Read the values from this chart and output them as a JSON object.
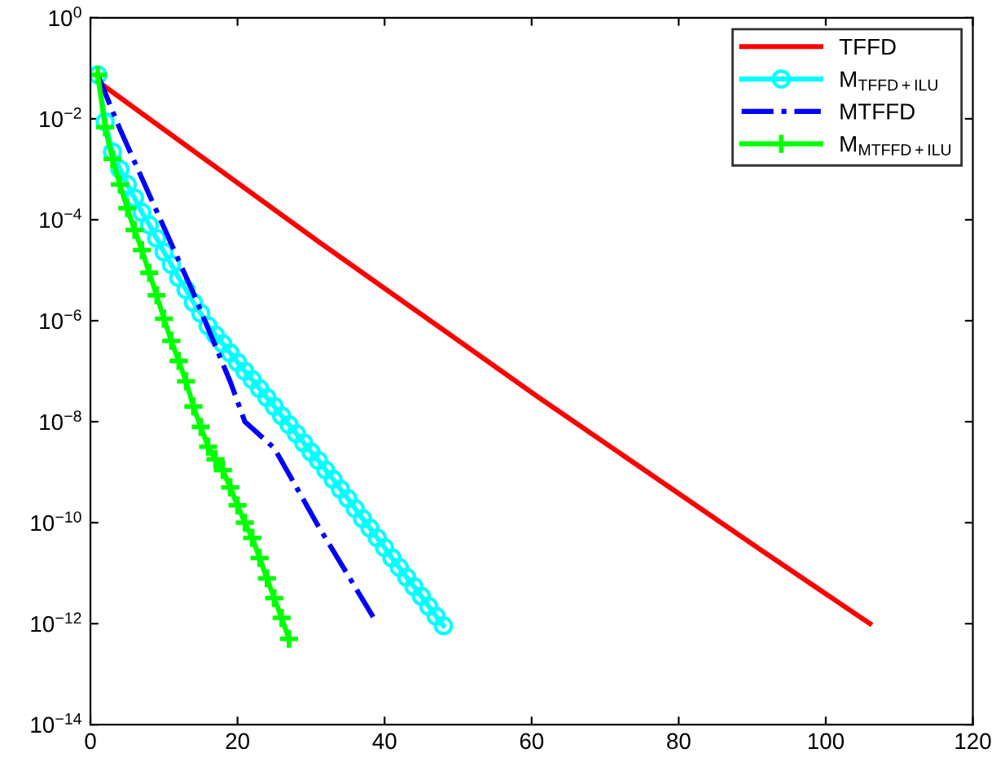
{
  "chart_data": {
    "type": "line",
    "log": "y",
    "grid": false,
    "legend": "top right",
    "xlim": [
      0,
      120
    ],
    "xticks": [
      0,
      20,
      40,
      60,
      80,
      100,
      120
    ],
    "ylim": [
      1e-14,
      1
    ],
    "yticks": [
      {
        "value": 1,
        "label": "10$^{0}$"
      },
      {
        "value": 0.01,
        "label": "10$^{−2}$"
      },
      {
        "value": 0.0001,
        "label": "10$^{−4}$"
      },
      {
        "value": 1e-06,
        "label": "10$^{−6}$"
      },
      {
        "value": 1e-08,
        "label": "10$^{−8}$"
      },
      {
        "value": 1e-10,
        "label": "10$^{−10}$"
      },
      {
        "value": 1e-12,
        "label": "10$^{−12}$"
      },
      {
        "value": 1e-14,
        "label": "10$^{−14}$"
      }
    ],
    "series": [
      {
        "name": "TFFD",
        "color": "#ff0000",
        "marker": "none",
        "line_style": "solid",
        "x": [
          1,
          31,
          61,
          91,
          106
        ],
        "values": [
          0.055,
          3.7e-05,
          3e-08,
          3e-11,
          1e-12
        ]
      },
      {
        "name": "M$_{TFFD+ILU}$",
        "color": "#00ffff",
        "marker": "circle",
        "line_style": "solid",
        "x": [
          1,
          2,
          3,
          4,
          5,
          6,
          7,
          8,
          9,
          10,
          11,
          12,
          13,
          14,
          15,
          16,
          17,
          18,
          19,
          20,
          21,
          22,
          23,
          24,
          25,
          26,
          27,
          28,
          29,
          30,
          31,
          32,
          33,
          34,
          35,
          36,
          37,
          38,
          39,
          40,
          41,
          42,
          43,
          44,
          45,
          46,
          47,
          48
        ],
        "values": [
          0.074,
          0.0087,
          0.0022,
          0.001,
          0.0005,
          0.00027,
          0.00014,
          7.9e-05,
          4.3e-05,
          2.3e-05,
          1.3e-05,
          7.1e-06,
          4.1e-06,
          2.3e-06,
          1.4e-06,
          7.9e-07,
          5.2e-07,
          3.5e-07,
          2.3e-07,
          1.5e-07,
          1e-07,
          6.8e-08,
          4.5e-08,
          3e-08,
          2e-08,
          1.3e-08,
          8.7e-09,
          5.8e-09,
          3.8e-09,
          2.5e-09,
          1.7e-09,
          1.1e-09,
          7.2e-10,
          4.6e-10,
          3e-10,
          1.9e-10,
          1.2e-10,
          7.8e-11,
          5e-11,
          3.2e-11,
          2e-11,
          1.3e-11,
          8.3e-12,
          5.4e-12,
          3.5e-12,
          2.2e-12,
          1.4e-12,
          9.1e-13
        ]
      },
      {
        "name": "MTFFD",
        "color": "#0000ff",
        "marker": "none",
        "line_style": "dashdot",
        "x": [
          1,
          4,
          14,
          19,
          21,
          25,
          31,
          39
        ],
        "values": [
          0.074,
          0.0063,
          3.5e-06,
          6.3e-08,
          1e-08,
          3e-09,
          8.5e-11,
          1e-12
        ]
      },
      {
        "name": "M$_{MTFFD+ILU}$",
        "color": "#00ff00",
        "marker": "cross",
        "line_style": "solid",
        "x": [
          1,
          2,
          3,
          4,
          5,
          6,
          7,
          8,
          9,
          10,
          11,
          12,
          13,
          14,
          15,
          16,
          17,
          18,
          19,
          20,
          21,
          22,
          23,
          24,
          25,
          26,
          27
        ],
        "values": [
          0.074,
          0.0068,
          0.0016,
          0.0005,
          0.00017,
          6.3e-05,
          2.5e-05,
          8.9e-06,
          3.2e-06,
          1.1e-06,
          4e-07,
          1.6e-07,
          6.3e-08,
          2e-08,
          7.9e-09,
          3.2e-09,
          1.8e-09,
          1.1e-09,
          5e-10,
          2.2e-10,
          1e-10,
          5e-11,
          2e-11,
          7.9e-12,
          3.2e-12,
          1.3e-12,
          5e-13
        ]
      }
    ]
  }
}
